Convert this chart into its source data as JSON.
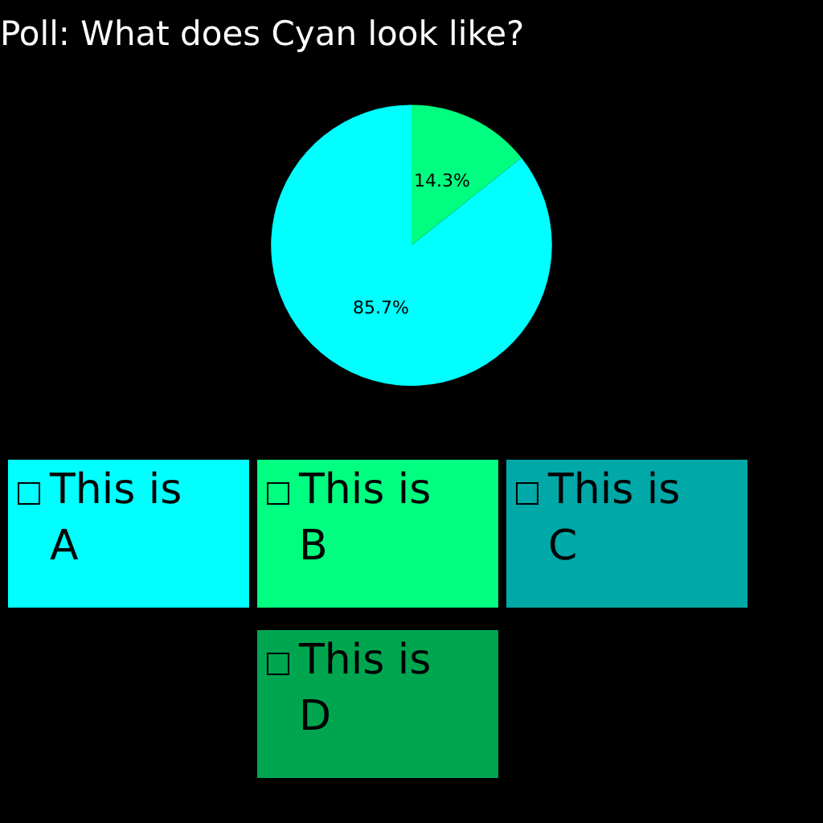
{
  "chart_data": {
    "type": "pie",
    "title": "Poll: What does Cyan look like?",
    "categories": [
      "This is A",
      "This is B",
      "This is C",
      "This is D"
    ],
    "values": [
      85.7,
      14.3,
      0,
      0
    ],
    "colors": [
      "#00ffff",
      "#00ff80",
      "#00a8a8",
      "#00a550"
    ],
    "value_labels": [
      "85.7%",
      "14.3%",
      null,
      null
    ],
    "legend": "bottom"
  }
}
